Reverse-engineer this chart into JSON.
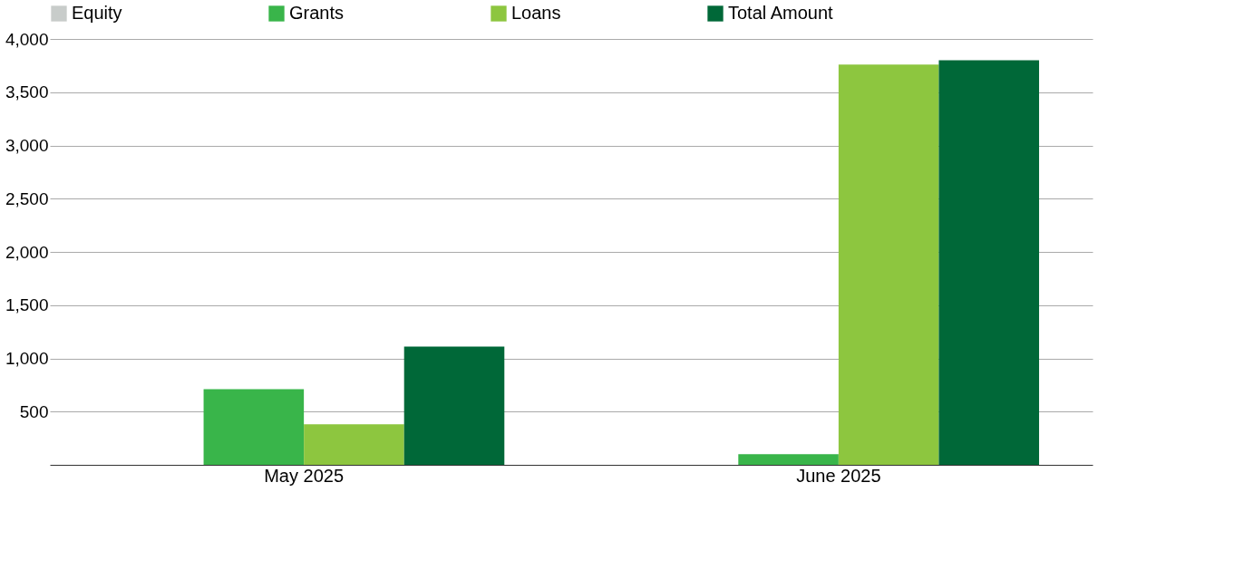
{
  "chart_data": {
    "type": "bar",
    "categories": [
      "May 2025",
      "June 2025"
    ],
    "series": [
      {
        "name": "Equity",
        "color": "#c8ccca",
        "values": [
          0,
          0
        ]
      },
      {
        "name": "Grants",
        "color": "#39b54a",
        "values": [
          710,
          100
        ]
      },
      {
        "name": "Loans",
        "color": "#8dc63f",
        "values": [
          380,
          3760
        ]
      },
      {
        "name": "Total Amount",
        "color": "#006838",
        "values": [
          1110,
          3800
        ]
      }
    ],
    "ylim": [
      0,
      4000
    ],
    "yticks": [
      500,
      {
        "value": 1000,
        "label": "1,000"
      },
      {
        "value": 1500,
        "label": "1,500"
      },
      {
        "value": 2000,
        "label": "2,000"
      },
      {
        "value": 2500,
        "label": "2,500"
      },
      {
        "value": 3000,
        "label": "3,000"
      },
      {
        "value": 3500,
        "label": "3,500"
      },
      {
        "value": 4000,
        "label": "4,000"
      }
    ],
    "grid": "y",
    "legend": "top"
  }
}
